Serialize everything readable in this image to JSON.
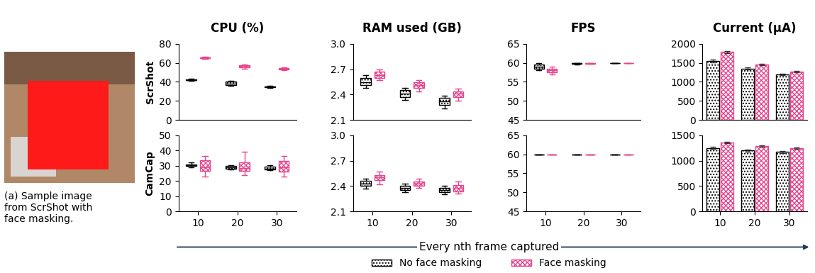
{
  "figure": {
    "caption": "(a) Sample image\nfrom ScrShot with\nface masking.",
    "xlabel": "Every nth frame captured",
    "legend": "lower center"
  },
  "chart_data": [
    {
      "type": "box",
      "title": "CPU (%)",
      "ylabel": "ScrShot",
      "categories": [
        "10",
        "20",
        "30"
      ],
      "tick_labels": "y",
      "ylim": [
        0,
        80
      ],
      "yticks": [
        0,
        20,
        40,
        60,
        80
      ],
      "series": [
        {
          "name": "No face masking",
          "color": "#000000",
          "values": [
            {
              "min": 41,
              "q1": 41.5,
              "median": 42,
              "q3": 42.5,
              "max": 43
            },
            {
              "min": 36,
              "q1": 37,
              "median": 38.5,
              "q3": 40,
              "max": 41
            },
            {
              "min": 34,
              "q1": 34.5,
              "median": 35,
              "q3": 35.5,
              "max": 36
            }
          ]
        },
        {
          "name": "Face masking",
          "color": "#e8448c",
          "values": [
            {
              "min": 64,
              "q1": 64.5,
              "median": 65,
              "q3": 65.5,
              "max": 66
            },
            {
              "min": 54,
              "q1": 55.5,
              "median": 56.5,
              "q3": 57.5,
              "max": 58
            },
            {
              "min": 52,
              "q1": 53,
              "median": 53.5,
              "q3": 54.5,
              "max": 55
            }
          ]
        }
      ]
    },
    {
      "type": "box",
      "title": "RAM used (GB)",
      "categories": [
        "10",
        "20",
        "30"
      ],
      "tick_labels": "y",
      "ylim": [
        2.1,
        3.0
      ],
      "yticks": [
        2.1,
        2.4,
        2.7,
        {
          "value": 3.0,
          "label": "3.0"
        }
      ],
      "series": [
        {
          "name": "No face masking",
          "color": "#000000",
          "values": [
            {
              "min": 2.48,
              "q1": 2.51,
              "median": 2.55,
              "q3": 2.6,
              "max": 2.63
            },
            {
              "min": 2.34,
              "q1": 2.37,
              "median": 2.41,
              "q3": 2.45,
              "max": 2.48
            },
            {
              "min": 2.24,
              "q1": 2.28,
              "median": 2.32,
              "q3": 2.36,
              "max": 2.39
            }
          ]
        },
        {
          "name": "Face masking",
          "color": "#e8448c",
          "values": [
            {
              "min": 2.57,
              "q1": 2.6,
              "median": 2.63,
              "q3": 2.67,
              "max": 2.7
            },
            {
              "min": 2.44,
              "q1": 2.48,
              "median": 2.51,
              "q3": 2.55,
              "max": 2.57
            },
            {
              "min": 2.33,
              "q1": 2.37,
              "median": 2.41,
              "q3": 2.44,
              "max": 2.47
            }
          ]
        }
      ]
    },
    {
      "type": "box",
      "title": "FPS",
      "categories": [
        "10",
        "20",
        "30"
      ],
      "tick_labels": "y",
      "ylim": [
        45,
        65
      ],
      "yticks": [
        45,
        50,
        55,
        60,
        65
      ],
      "series": [
        {
          "name": "No face masking",
          "color": "#000000",
          "values": [
            {
              "min": 58,
              "q1": 58.5,
              "median": 59,
              "q3": 59.5,
              "max": 60
            },
            {
              "min": 59.6,
              "q1": 59.8,
              "median": 59.9,
              "q3": 60,
              "max": 60
            },
            {
              "min": 59.9,
              "q1": 60,
              "median": 60,
              "q3": 60,
              "max": 60
            }
          ]
        },
        {
          "name": "Face masking",
          "color": "#e8448c",
          "values": [
            {
              "min": 57,
              "q1": 57.5,
              "median": 58,
              "q3": 58.5,
              "max": 59
            },
            {
              "min": 59.7,
              "q1": 59.8,
              "median": 59.9,
              "q3": 60,
              "max": 60
            },
            {
              "min": 59.9,
              "q1": 60,
              "median": 60,
              "q3": 60,
              "max": 60
            }
          ]
        }
      ]
    },
    {
      "type": "bar",
      "title": "Current (µA)",
      "categories": [
        "10",
        "20",
        "30"
      ],
      "tick_labels": "y",
      "ylim": [
        0,
        2000
      ],
      "yticks": [
        0,
        500,
        1000,
        1500,
        2000
      ],
      "series": [
        {
          "name": "No face masking",
          "color": "#000000",
          "values": [
            1550,
            1350,
            1200
          ],
          "errors": [
            40,
            30,
            20
          ]
        },
        {
          "name": "Face masking",
          "color": "#e8448c",
          "values": [
            1780,
            1450,
            1270
          ],
          "errors": [
            30,
            20,
            20
          ]
        }
      ]
    },
    {
      "type": "box",
      "ylabel": "CamCap",
      "categories": [
        "10",
        "20",
        "30"
      ],
      "ylim": [
        0,
        50
      ],
      "yticks": [
        0,
        10,
        20,
        30,
        40,
        50
      ],
      "series": [
        {
          "name": "No face masking",
          "color": "#000000",
          "values": [
            {
              "min": 29,
              "q1": 30,
              "median": 30.5,
              "q3": 31,
              "max": 32
            },
            {
              "min": 27.5,
              "q1": 28,
              "median": 29,
              "q3": 30,
              "max": 30.5
            },
            {
              "min": 27,
              "q1": 27.5,
              "median": 28,
              "q3": 29.5,
              "max": 30.5
            }
          ]
        },
        {
          "name": "Face masking",
          "color": "#e8448c",
          "values": [
            {
              "min": 23,
              "q1": 26.5,
              "median": 29,
              "q3": 33.5,
              "max": 36.5
            },
            {
              "min": 24,
              "q1": 26.5,
              "median": 28.5,
              "q3": 32,
              "max": 39
            },
            {
              "min": 23,
              "q1": 26,
              "median": 29,
              "q3": 33,
              "max": 36.5
            }
          ]
        }
      ]
    },
    {
      "type": "box",
      "categories": [
        "10",
        "20",
        "30"
      ],
      "ylim": [
        2.1,
        3.0
      ],
      "yticks": [
        2.1,
        2.4,
        2.7,
        {
          "value": 3.0,
          "label": "3.0"
        }
      ],
      "series": [
        {
          "name": "No face masking",
          "color": "#000000",
          "values": [
            {
              "min": 2.37,
              "q1": 2.4,
              "median": 2.43,
              "q3": 2.46,
              "max": 2.49
            },
            {
              "min": 2.33,
              "q1": 2.35,
              "median": 2.38,
              "q3": 2.4,
              "max": 2.43
            },
            {
              "min": 2.3,
              "q1": 2.33,
              "median": 2.35,
              "q3": 2.38,
              "max": 2.4
            }
          ]
        },
        {
          "name": "Face masking",
          "color": "#e8448c",
          "values": [
            {
              "min": 2.42,
              "q1": 2.47,
              "median": 2.5,
              "q3": 2.53,
              "max": 2.57
            },
            {
              "min": 2.38,
              "q1": 2.4,
              "median": 2.43,
              "q3": 2.45,
              "max": 2.49
            },
            {
              "min": 2.31,
              "q1": 2.34,
              "median": 2.38,
              "q3": 2.41,
              "max": 2.45
            }
          ]
        }
      ]
    },
    {
      "type": "box",
      "categories": [
        "10",
        "20",
        "30"
      ],
      "ylim": [
        45,
        65
      ],
      "yticks": [
        45,
        50,
        55,
        60,
        65
      ],
      "series": [
        {
          "name": "No face masking",
          "color": "#000000",
          "values": [
            {
              "min": 59.9,
              "q1": 60,
              "median": 60,
              "q3": 60,
              "max": 60
            },
            {
              "min": 59.9,
              "q1": 60,
              "median": 60,
              "q3": 60,
              "max": 60
            },
            {
              "min": 59.9,
              "q1": 60,
              "median": 60,
              "q3": 60,
              "max": 60
            }
          ]
        },
        {
          "name": "Face masking",
          "color": "#e8448c",
          "values": [
            {
              "min": 59.9,
              "q1": 60,
              "median": 60,
              "q3": 60,
              "max": 60
            },
            {
              "min": 59.9,
              "q1": 60,
              "median": 60,
              "q3": 60,
              "max": 60
            },
            {
              "min": 59.9,
              "q1": 60,
              "median": 60,
              "q3": 60,
              "max": 60
            }
          ]
        }
      ]
    },
    {
      "type": "bar",
      "categories": [
        "10",
        "20",
        "30"
      ],
      "ylim": [
        0,
        1500
      ],
      "yticks": [
        0,
        500,
        1000,
        1500
      ],
      "series": [
        {
          "name": "No face masking",
          "color": "#000000",
          "values": [
            1250,
            1200,
            1170
          ],
          "errors": [
            20,
            20,
            20
          ]
        },
        {
          "name": "Face masking",
          "color": "#e8448c",
          "values": [
            1350,
            1280,
            1240
          ],
          "errors": [
            15,
            15,
            15
          ]
        }
      ]
    }
  ]
}
